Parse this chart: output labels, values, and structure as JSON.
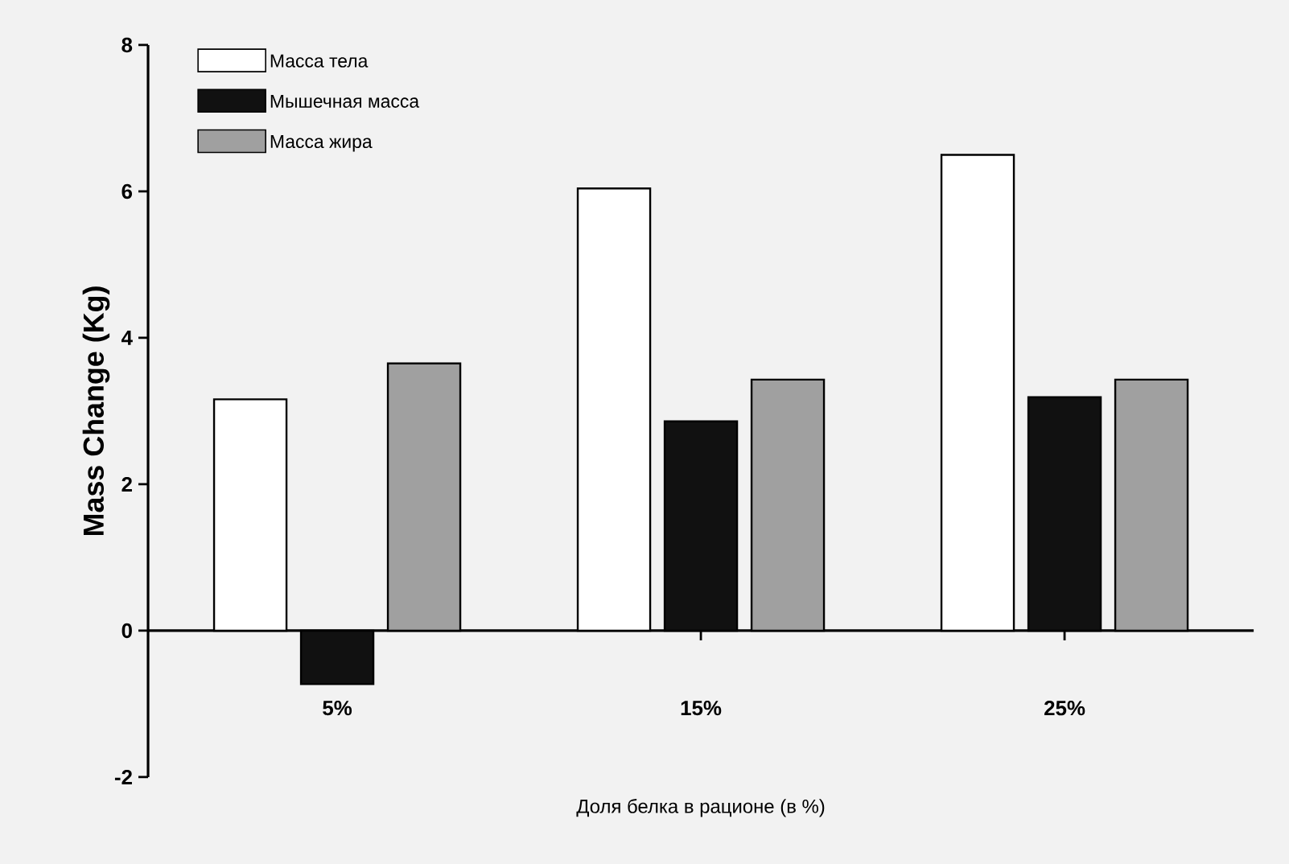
{
  "chart_data": {
    "type": "bar",
    "xlabel": "Доля белка в рационе (в %)",
    "ylabel": "Mass Change (Kg)",
    "categories": [
      "5%",
      "15%",
      "25%"
    ],
    "series": [
      {
        "name": "Масса тела",
        "color": "#ffffff",
        "values": [
          3.16,
          6.04,
          6.5
        ]
      },
      {
        "name": "Мышечная масса",
        "color": "#111111",
        "values": [
          -0.73,
          2.86,
          3.19
        ]
      },
      {
        "name": "Масса жира",
        "color": "#a0a0a0",
        "values": [
          3.65,
          3.43,
          3.43
        ]
      }
    ],
    "ylim": [
      -2,
      8
    ],
    "yticks": [
      -2,
      0,
      2,
      4,
      6,
      8
    ],
    "legend": "top left"
  }
}
